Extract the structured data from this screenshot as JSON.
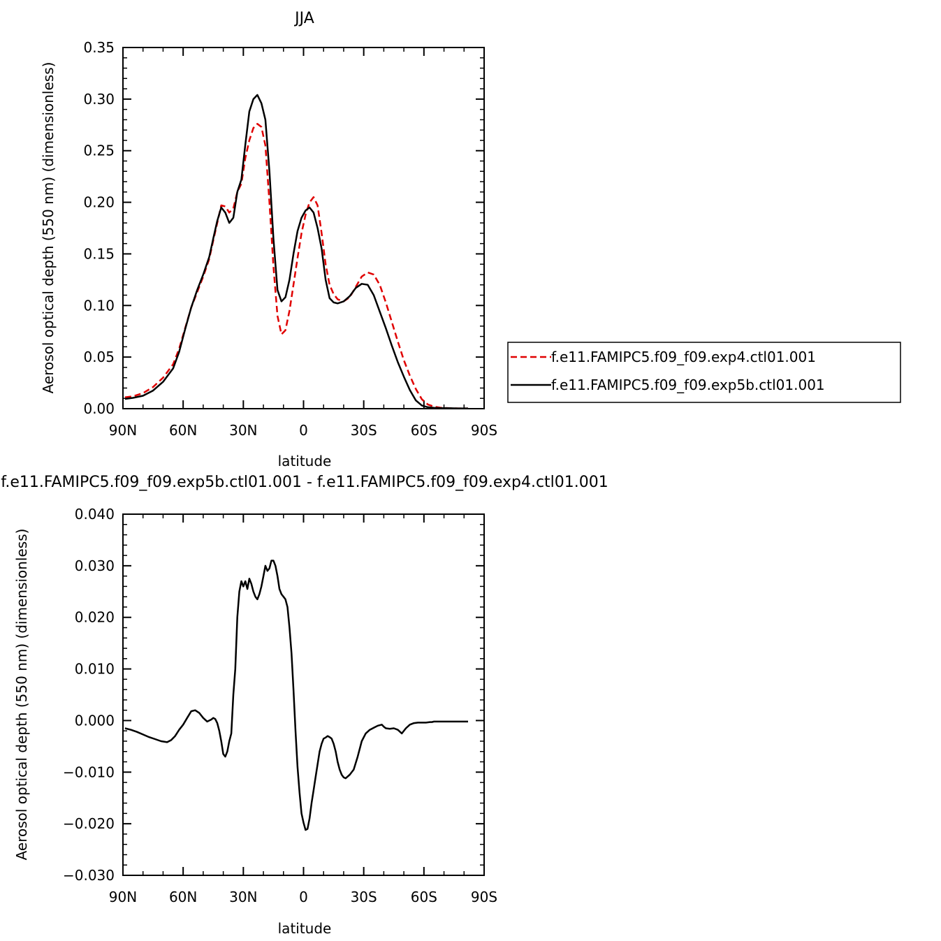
{
  "chart_data": [
    {
      "type": "line",
      "title": "JJA",
      "xlabel": "latitude",
      "ylabel": "Aerosol optical depth (550 nm) (dimensionless)",
      "xlim": [
        90,
        -90
      ],
      "ylim": [
        0,
        0.35
      ],
      "x_ticks": [
        90,
        60,
        30,
        0,
        -30,
        -60,
        -90
      ],
      "x_tick_labels": [
        "90N",
        "60N",
        "30N",
        "0",
        "30S",
        "60S",
        "90S"
      ],
      "y_ticks": [
        0,
        0.05,
        0.1,
        0.15,
        0.2,
        0.25,
        0.3,
        0.35
      ],
      "y_tick_labels": [
        "0.00",
        "0.05",
        "0.10",
        "0.15",
        "0.20",
        "0.25",
        "0.30",
        "0.35"
      ],
      "grid": false,
      "legend_position": "right",
      "series": [
        {
          "name": "f.e11.FAMIPC5.f09_f09.exp4.ctl01.001",
          "color": "#e00000",
          "style": "dashed",
          "x": [
            89,
            85,
            80,
            75,
            70,
            65,
            62,
            59,
            56,
            53,
            50,
            47,
            45,
            43,
            41,
            39,
            37,
            35,
            33,
            31,
            29,
            27,
            25,
            23,
            21,
            19,
            17,
            15,
            13,
            11,
            9,
            7,
            5,
            3,
            1,
            -1,
            -3,
            -5,
            -7,
            -9,
            -11,
            -13,
            -15,
            -17,
            -20,
            -23,
            -26,
            -29,
            -32,
            -35,
            -38,
            -41,
            -44,
            -47,
            -50,
            -53,
            -56,
            -59,
            -62,
            -65,
            -68,
            -71,
            -74,
            -77,
            -80,
            -82
          ],
          "y": [
            0.011,
            0.012,
            0.015,
            0.021,
            0.03,
            0.043,
            0.058,
            0.078,
            0.098,
            0.113,
            0.128,
            0.145,
            0.163,
            0.18,
            0.197,
            0.196,
            0.19,
            0.194,
            0.21,
            0.218,
            0.243,
            0.26,
            0.272,
            0.276,
            0.273,
            0.255,
            0.2,
            0.138,
            0.09,
            0.072,
            0.076,
            0.095,
            0.12,
            0.146,
            0.17,
            0.188,
            0.2,
            0.205,
            0.197,
            0.17,
            0.14,
            0.12,
            0.111,
            0.106,
            0.104,
            0.108,
            0.118,
            0.128,
            0.132,
            0.13,
            0.12,
            0.103,
            0.084,
            0.065,
            0.047,
            0.032,
            0.019,
            0.009,
            0.004,
            0.002,
            0.001,
            0.0007,
            0.0004,
            0.0003,
            0.0003,
            0.0003
          ]
        },
        {
          "name": "f.e11.FAMIPC5.f09_f09.exp5b.ctl01.001",
          "color": "#000000",
          "style": "solid",
          "x": [
            89,
            85,
            80,
            75,
            70,
            65,
            62,
            59,
            56,
            53,
            50,
            47,
            45,
            43,
            41,
            39,
            37,
            35,
            33,
            31,
            29,
            27,
            25,
            23,
            21,
            19,
            17,
            15,
            13,
            11,
            9,
            7,
            5,
            3,
            1,
            -1,
            -3,
            -5,
            -7,
            -9,
            -11,
            -13,
            -15,
            -17,
            -20,
            -23,
            -26,
            -29,
            -32,
            -35,
            -38,
            -41,
            -44,
            -47,
            -50,
            -53,
            -56,
            -59,
            -62,
            -65,
            -68,
            -71,
            -74,
            -77,
            -80,
            -82
          ],
          "y": [
            0.0095,
            0.0105,
            0.0125,
            0.0175,
            0.026,
            0.039,
            0.055,
            0.077,
            0.098,
            0.115,
            0.13,
            0.147,
            0.165,
            0.182,
            0.195,
            0.19,
            0.18,
            0.185,
            0.21,
            0.222,
            0.256,
            0.288,
            0.3,
            0.304,
            0.296,
            0.28,
            0.23,
            0.165,
            0.115,
            0.104,
            0.108,
            0.125,
            0.15,
            0.172,
            0.185,
            0.192,
            0.195,
            0.19,
            0.175,
            0.155,
            0.125,
            0.107,
            0.103,
            0.102,
            0.104,
            0.109,
            0.117,
            0.121,
            0.12,
            0.11,
            0.094,
            0.078,
            0.061,
            0.045,
            0.031,
            0.018,
            0.008,
            0.003,
            0.0014,
            0.0009,
            0.0006,
            0.0005,
            0.0004,
            0.0003,
            0.0003,
            0.0003
          ]
        }
      ]
    },
    {
      "type": "line",
      "title": "f.e11.FAMIPC5.f09_f09.exp5b.ctl01.001 - f.e11.FAMIPC5.f09_f09.exp4.ctl01.001",
      "xlabel": "latitude",
      "ylabel": "Aerosol optical depth (550 nm) (dimensionless)",
      "xlim": [
        90,
        -90
      ],
      "ylim": [
        -0.03,
        0.04
      ],
      "x_ticks": [
        90,
        60,
        30,
        0,
        -30,
        -60,
        -90
      ],
      "x_tick_labels": [
        "90N",
        "60N",
        "30N",
        "0",
        "30S",
        "60S",
        "90S"
      ],
      "y_ticks": [
        -0.03,
        -0.02,
        -0.01,
        0,
        0.01,
        0.02,
        0.03,
        0.04
      ],
      "y_tick_labels": [
        "−0.030",
        "−0.020",
        "−0.010",
        "0.000",
        "0.010",
        "0.020",
        "0.030",
        "0.040"
      ],
      "grid": false,
      "series": [
        {
          "name": "",
          "color": "#000000",
          "style": "solid",
          "x": [
            89,
            86,
            83,
            80,
            77,
            74,
            71,
            68,
            66,
            64,
            62,
            60,
            58,
            56,
            54,
            52,
            50,
            48,
            46,
            45,
            44,
            43,
            42,
            41,
            40,
            39,
            38,
            37,
            36,
            35,
            34,
            33,
            32,
            31,
            30,
            29,
            28,
            27,
            26,
            25,
            24,
            23,
            22,
            21,
            20,
            19,
            18,
            17,
            16,
            15,
            14,
            13,
            12,
            11,
            10,
            9,
            8,
            7,
            6,
            5,
            4,
            3,
            2,
            1,
            0,
            -1,
            -2,
            -3,
            -4,
            -5,
            -6,
            -7,
            -8,
            -9,
            -10,
            -11,
            -12,
            -13,
            -14,
            -15,
            -16,
            -17,
            -18,
            -19,
            -20,
            -21,
            -23,
            -25,
            -27,
            -29,
            -31,
            -33,
            -35,
            -37,
            -39,
            -40,
            -41,
            -43,
            -45,
            -47,
            -49,
            -51,
            -53,
            -55,
            -57,
            -59,
            -61,
            -63,
            -64,
            -65,
            -66,
            -67,
            -68,
            -69,
            -70,
            -72,
            -74,
            -76,
            -78,
            -80,
            -82
          ],
          "y": [
            -0.0015,
            -0.0018,
            -0.0022,
            -0.0027,
            -0.0032,
            -0.0036,
            -0.004,
            -0.0042,
            -0.0038,
            -0.003,
            -0.0018,
            -0.0008,
            0.0005,
            0.0018,
            0.002,
            0.0015,
            0.0005,
            -0.0002,
            0.0002,
            0.0005,
            0.0003,
            -0.0005,
            -0.002,
            -0.004,
            -0.0065,
            -0.007,
            -0.006,
            -0.004,
            -0.0025,
            0.005,
            0.01,
            0.02,
            0.025,
            0.027,
            0.026,
            0.027,
            0.0255,
            0.0275,
            0.0265,
            0.025,
            0.024,
            0.0235,
            0.0245,
            0.026,
            0.028,
            0.03,
            0.029,
            0.0295,
            0.031,
            0.031,
            0.03,
            0.028,
            0.0255,
            0.0245,
            0.024,
            0.0235,
            0.022,
            0.018,
            0.013,
            0.006,
            -0.002,
            -0.009,
            -0.014,
            -0.018,
            -0.0198,
            -0.0212,
            -0.021,
            -0.019,
            -0.016,
            -0.0135,
            -0.011,
            -0.0085,
            -0.006,
            -0.0045,
            -0.0035,
            -0.0033,
            -0.003,
            -0.0032,
            -0.0035,
            -0.0045,
            -0.006,
            -0.008,
            -0.0095,
            -0.0105,
            -0.011,
            -0.0112,
            -0.0105,
            -0.0095,
            -0.007,
            -0.004,
            -0.0025,
            -0.0018,
            -0.0014,
            -0.001,
            -0.0008,
            -0.0012,
            -0.0015,
            -0.0016,
            -0.0015,
            -0.0018,
            -0.0025,
            -0.0015,
            -0.0008,
            -0.0005,
            -0.0004,
            -0.0004,
            -0.0004,
            -0.0003,
            -0.0003,
            -0.0002,
            -0.0002,
            -0.0002,
            -0.0002,
            -0.0002,
            -0.0002,
            -0.0002,
            -0.0002,
            -0.0002,
            -0.0002,
            -0.0002,
            -0.0002
          ]
        }
      ]
    }
  ]
}
